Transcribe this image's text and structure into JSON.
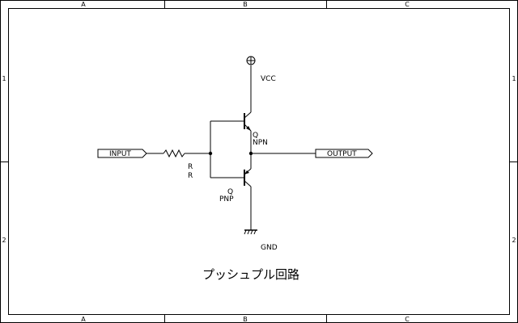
{
  "frame": {
    "columns": [
      "A",
      "B",
      "C"
    ],
    "rows": [
      "1",
      "2"
    ]
  },
  "ports": {
    "input": "INPUT",
    "output": "OUTPUT"
  },
  "parts": {
    "vcc": "VCC",
    "gnd": "GND",
    "resistor": {
      "ref": "R",
      "value": "R"
    },
    "npn": {
      "ref": "Q",
      "value": "NPN"
    },
    "pnp": {
      "ref": "Q",
      "value": "PNP"
    }
  },
  "title": "プッシュプル回路"
}
